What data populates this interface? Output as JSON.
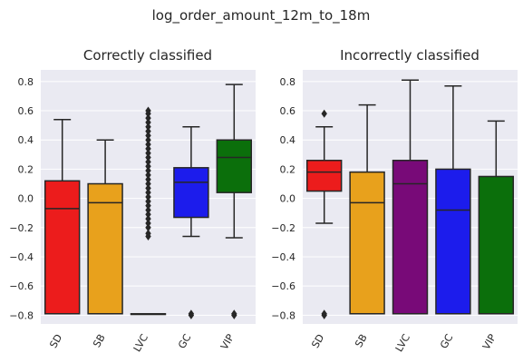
{
  "figure": {
    "suptitle": "log_order_amount_12m_to_18m"
  },
  "colors": {
    "background": "#eaeaf2",
    "grid": "#ffffff",
    "edge": "#262626",
    "SD": "#ec1c1c",
    "SB": "#e8a11c",
    "LVC": "#780a78",
    "GC": "#1c1cec",
    "VIP": "#0b6f0b"
  },
  "chart_data": [
    {
      "type": "box",
      "title": "Correctly classified",
      "categories": [
        "SD",
        "SB",
        "LVC",
        "GC",
        "VIP"
      ],
      "ylim": [
        -0.86,
        0.88
      ],
      "yticks": [
        -0.8,
        -0.6,
        -0.4,
        -0.2,
        0.0,
        0.2,
        0.4,
        0.6,
        0.8
      ],
      "ytick_labels": [
        "−0.8",
        "−0.6",
        "−0.4",
        "−0.2",
        "0.0",
        "0.2",
        "0.4",
        "0.6",
        "0.8"
      ],
      "grid": true,
      "boxes": [
        {
          "category": "SD",
          "whislo": -0.79,
          "q1": -0.79,
          "median": -0.07,
          "q3": 0.12,
          "whishi": 0.54,
          "fliers": []
        },
        {
          "category": "SB",
          "whislo": -0.79,
          "q1": -0.79,
          "median": -0.03,
          "q3": 0.1,
          "whishi": 0.4,
          "fliers": []
        },
        {
          "category": "LVC",
          "whislo": -0.79,
          "q1": -0.79,
          "median": -0.79,
          "q3": -0.79,
          "whishi": -0.79,
          "fliers": [
            -0.26,
            -0.24,
            -0.2,
            -0.17,
            -0.14,
            -0.11,
            -0.08,
            -0.05,
            -0.02,
            0.01,
            0.04,
            0.07,
            0.1,
            0.13,
            0.16,
            0.19,
            0.22,
            0.25,
            0.28,
            0.31,
            0.34,
            0.37,
            0.4,
            0.43,
            0.46,
            0.49,
            0.52,
            0.55,
            0.58,
            0.6
          ]
        },
        {
          "category": "GC",
          "whislo": -0.26,
          "q1": -0.13,
          "median": 0.11,
          "q3": 0.21,
          "whishi": 0.49,
          "fliers": [
            -0.79,
            -0.8
          ]
        },
        {
          "category": "VIP",
          "whislo": -0.27,
          "q1": 0.04,
          "median": 0.28,
          "q3": 0.4,
          "whishi": 0.78,
          "fliers": [
            -0.79,
            -0.8
          ]
        }
      ]
    },
    {
      "type": "box",
      "title": "Incorrectly classified",
      "categories": [
        "SD",
        "SB",
        "LVC",
        "GC",
        "VIP"
      ],
      "ylim": [
        -0.86,
        0.88
      ],
      "yticks": [
        -0.8,
        -0.6,
        -0.4,
        -0.2,
        0.0,
        0.2,
        0.4,
        0.6,
        0.8
      ],
      "ytick_labels": [
        "−0.8",
        "−0.6",
        "−0.4",
        "−0.2",
        "0.0",
        "0.2",
        "0.4",
        "0.6",
        "0.8"
      ],
      "grid": true,
      "boxes": [
        {
          "category": "SD",
          "whislo": -0.17,
          "q1": 0.05,
          "median": 0.18,
          "q3": 0.26,
          "whishi": 0.49,
          "fliers": [
            0.58,
            -0.79,
            -0.8
          ]
        },
        {
          "category": "SB",
          "whislo": -0.79,
          "q1": -0.79,
          "median": -0.03,
          "q3": 0.18,
          "whishi": 0.64,
          "fliers": []
        },
        {
          "category": "LVC",
          "whislo": -0.79,
          "q1": -0.79,
          "median": 0.1,
          "q3": 0.26,
          "whishi": 0.81,
          "fliers": []
        },
        {
          "category": "GC",
          "whislo": -0.79,
          "q1": -0.79,
          "median": -0.08,
          "q3": 0.2,
          "whishi": 0.77,
          "fliers": []
        },
        {
          "category": "VIP",
          "whislo": -0.79,
          "q1": -0.79,
          "median": -0.79,
          "q3": 0.15,
          "whishi": 0.53,
          "fliers": []
        }
      ]
    }
  ]
}
